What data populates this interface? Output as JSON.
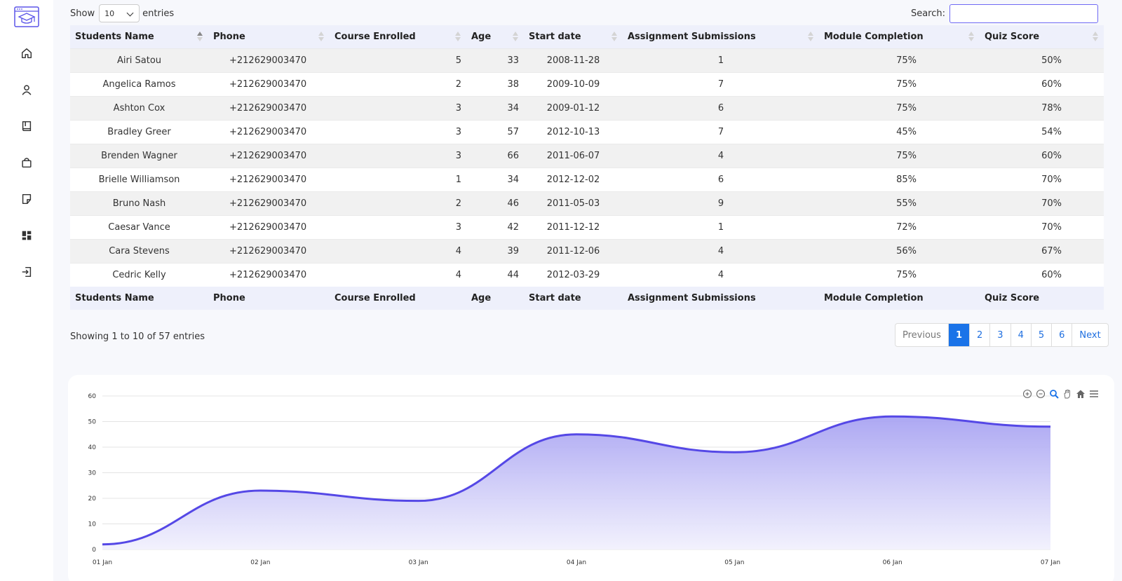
{
  "sidebar": {
    "items": [
      {
        "icon": "home-icon"
      },
      {
        "icon": "user-icon"
      },
      {
        "icon": "book-icon"
      },
      {
        "icon": "bag-icon"
      },
      {
        "icon": "note-icon"
      },
      {
        "icon": "dashboard-icon"
      },
      {
        "icon": "logout-icon"
      }
    ]
  },
  "controls": {
    "show_label": "Show",
    "entries_value": "10",
    "entries_label": "entries",
    "search_label": "Search:",
    "search_value": ""
  },
  "table": {
    "headers": [
      "Students Name",
      "Phone",
      "Course Enrolled",
      "Age",
      "Start date",
      "Assignment Submissions",
      "Module Completion",
      "Quiz Score"
    ],
    "rows": [
      [
        "Airi Satou",
        "+212629003470",
        "5",
        "33",
        "2008-11-28",
        "1",
        "75%",
        "50%"
      ],
      [
        "Angelica Ramos",
        "+212629003470",
        "2",
        "38",
        "2009-10-09",
        "7",
        "75%",
        "60%"
      ],
      [
        "Ashton Cox",
        "+212629003470",
        "3",
        "34",
        "2009-01-12",
        "6",
        "75%",
        "78%"
      ],
      [
        "Bradley Greer",
        "+212629003470",
        "3",
        "57",
        "2012-10-13",
        "7",
        "45%",
        "54%"
      ],
      [
        "Brenden Wagner",
        "+212629003470",
        "3",
        "66",
        "2011-06-07",
        "4",
        "75%",
        "60%"
      ],
      [
        "Brielle Williamson",
        "+212629003470",
        "1",
        "34",
        "2012-12-02",
        "6",
        "85%",
        "70%"
      ],
      [
        "Bruno Nash",
        "+212629003470",
        "2",
        "46",
        "2011-05-03",
        "9",
        "55%",
        "70%"
      ],
      [
        "Caesar Vance",
        "+212629003470",
        "3",
        "42",
        "2011-12-12",
        "1",
        "72%",
        "70%"
      ],
      [
        "Cara Stevens",
        "+212629003470",
        "4",
        "39",
        "2011-12-06",
        "4",
        "56%",
        "67%"
      ],
      [
        "Cedric Kelly",
        "+212629003470",
        "4",
        "44",
        "2012-03-29",
        "4",
        "75%",
        "60%"
      ]
    ]
  },
  "info": "Showing 1 to 10 of 57 entries",
  "pagination": {
    "previous": "Previous",
    "pages": [
      "1",
      "2",
      "3",
      "4",
      "5",
      "6"
    ],
    "active": "1",
    "next": "Next"
  },
  "chart_data": {
    "type": "area",
    "x": [
      "01 Jan",
      "02 Jan",
      "03 Jan",
      "04 Jan",
      "05 Jan",
      "06 Jan",
      "07 Jan"
    ],
    "series": [
      {
        "values": [
          2,
          23,
          19,
          45,
          38,
          52,
          48
        ]
      }
    ],
    "ylim": [
      0,
      60
    ],
    "yticks": [
      0,
      10,
      20,
      30,
      40,
      50,
      60
    ],
    "grid": true,
    "colors": {
      "line": "#5548e6",
      "fill_top": "#a8a3f2",
      "fill_bottom": "#f1f0fd"
    },
    "toolbar": [
      "zoom-in-icon",
      "zoom-out-icon",
      "magnifier-icon",
      "pan-hand-icon",
      "home-reset-icon",
      "menu-icon"
    ]
  }
}
